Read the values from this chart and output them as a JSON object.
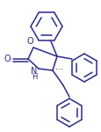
{
  "background_color": "#ffffff",
  "line_color": "#2b2b8a",
  "line_width": 1.1,
  "figsize": [
    1.16,
    1.5
  ],
  "dpi": 100,
  "xlim": [
    0,
    116
  ],
  "ylim": [
    0,
    150
  ]
}
